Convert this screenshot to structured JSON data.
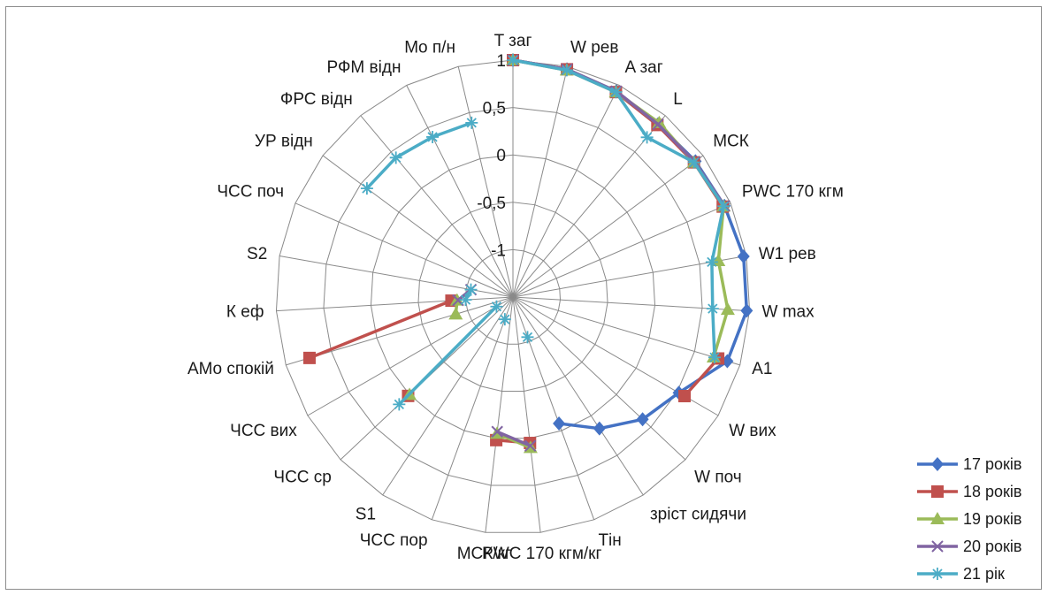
{
  "chart_data": {
    "type": "radar",
    "axes": [
      "T заг",
      "W рев",
      "A заг",
      "L",
      "МСК",
      "PWC 170 кгм",
      "W1 рев",
      "W max",
      "A1",
      "W вих",
      "W поч",
      "зріст сидячи",
      "Tін",
      "PWC 170 кгм/кг",
      "МСК/кг",
      "ЧСС пор",
      "S1",
      "ЧСС ср",
      "ЧСС вих",
      "AMo спокій",
      "К еф",
      "S2",
      "ЧСС поч",
      "УР відн",
      "ФРС відн",
      "РФМ відн",
      "Mo п/н"
    ],
    "rlim": [
      -1.5,
      1
    ],
    "ticks": [
      -1.5,
      -1,
      -0.5,
      0,
      0.5,
      1
    ],
    "tick_labels": [
      "",
      "-1",
      "-0,5",
      "0",
      "0,5",
      "1"
    ],
    "grid": true,
    "legend_position": "bottom-right",
    "series": [
      {
        "name": "17 років",
        "color": "#4472c4",
        "marker": "diamond",
        "values": [
          1,
          0.97,
          0.93,
          0.88,
          0.9,
          0.93,
          0.97,
          0.97,
          0.86,
          0.52,
          0.38,
          0.16,
          -0.08,
          null,
          null,
          null,
          null,
          null,
          null,
          null,
          null,
          null,
          null,
          null,
          null,
          null,
          null
        ]
      },
      {
        "name": "18 років",
        "color": "#c0504d",
        "marker": "square",
        "values": [
          1,
          0.97,
          0.92,
          0.87,
          0.88,
          0.91,
          null,
          null,
          0.76,
          0.59,
          null,
          null,
          null,
          0.05,
          0.02,
          null,
          null,
          0.02,
          null,
          0.74,
          -0.85,
          null,
          null,
          null,
          null,
          null,
          null
        ]
      },
      {
        "name": "19 років",
        "color": "#9bbb59",
        "marker": "triangle",
        "values": [
          1,
          0.96,
          0.92,
          0.9,
          0.88,
          0.92,
          0.7,
          0.77,
          0.71,
          null,
          null,
          null,
          null,
          0.1,
          -0.05,
          null,
          null,
          0,
          null,
          -0.87,
          -0.91,
          null,
          null,
          null,
          null,
          null,
          null
        ]
      },
      {
        "name": "20 років",
        "color": "#8064a2",
        "marker": "x",
        "values": [
          1,
          0.97,
          0.93,
          0.88,
          0.89,
          0.93,
          null,
          null,
          null,
          null,
          null,
          null,
          null,
          0.08,
          -0.07,
          null,
          null,
          null,
          null,
          null,
          -0.92,
          -1.05,
          null,
          null,
          null,
          null,
          null
        ]
      },
      {
        "name": "21 рік",
        "color": "#4bacc6",
        "marker": "star",
        "values": [
          1,
          0.96,
          0.92,
          0.7,
          0.88,
          0.92,
          0.63,
          0.61,
          0.72,
          null,
          null,
          null,
          -1.05,
          null,
          null,
          -1.25,
          null,
          0.15,
          -1.3,
          null,
          -1.0,
          -1.05,
          null,
          0.42,
          0.42,
          0.39,
          0.39
        ]
      }
    ]
  }
}
